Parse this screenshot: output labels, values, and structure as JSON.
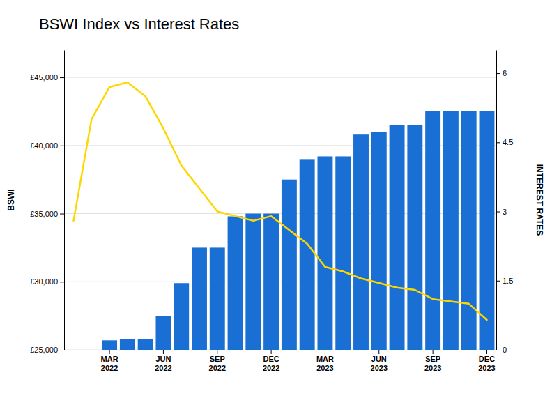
{
  "chart_data": {
    "type": "bar",
    "title": "BSWI Index vs Interest Rates",
    "ylabel": "BSWI",
    "y2label": "INTEREST RATES",
    "categories": [
      null,
      null,
      "MAR\n2022",
      null,
      null,
      "JUN\n2022",
      null,
      null,
      "SEP\n2022",
      null,
      null,
      "DEC\n2022",
      null,
      null,
      "MAR\n2023",
      null,
      null,
      "JUN\n2023",
      null,
      null,
      "SEP\n2023",
      null,
      null,
      "DEC\n2023"
    ],
    "series": [
      {
        "type": "bar",
        "color": "#1a6fd4",
        "values": [
          25000,
          25000,
          25700,
          25800,
          25800,
          27500,
          29900,
          32500,
          32500,
          34800,
          35000,
          35000,
          37500,
          39000,
          39200,
          39200,
          40800,
          41000,
          41500,
          41500,
          42500,
          42500,
          42500,
          42500
        ]
      },
      {
        "type": "line",
        "color": "#FFD700",
        "axis": "y2",
        "values": [
          2.8,
          5.0,
          5.7,
          5.8,
          5.5,
          4.8,
          4.0,
          3.5,
          3.0,
          2.9,
          2.8,
          2.9,
          2.6,
          2.3,
          1.8,
          1.7,
          1.55,
          1.45,
          1.35,
          1.3,
          1.1,
          1.05,
          1.0,
          0.65
        ]
      }
    ],
    "ylim": [
      25000,
      47000
    ],
    "yticks": [
      {
        "value": 25000,
        "label": "£25,000"
      },
      {
        "value": 30000,
        "label": "£30,000"
      },
      {
        "value": 35000,
        "label": "£35,000"
      },
      {
        "value": 40000,
        "label": "£40,000"
      },
      {
        "value": 45000,
        "label": "£45,000"
      }
    ],
    "y2lim": [
      0,
      6.5
    ],
    "y2ticks": [
      0,
      1.5,
      3,
      4.5,
      6
    ],
    "grid": true
  }
}
